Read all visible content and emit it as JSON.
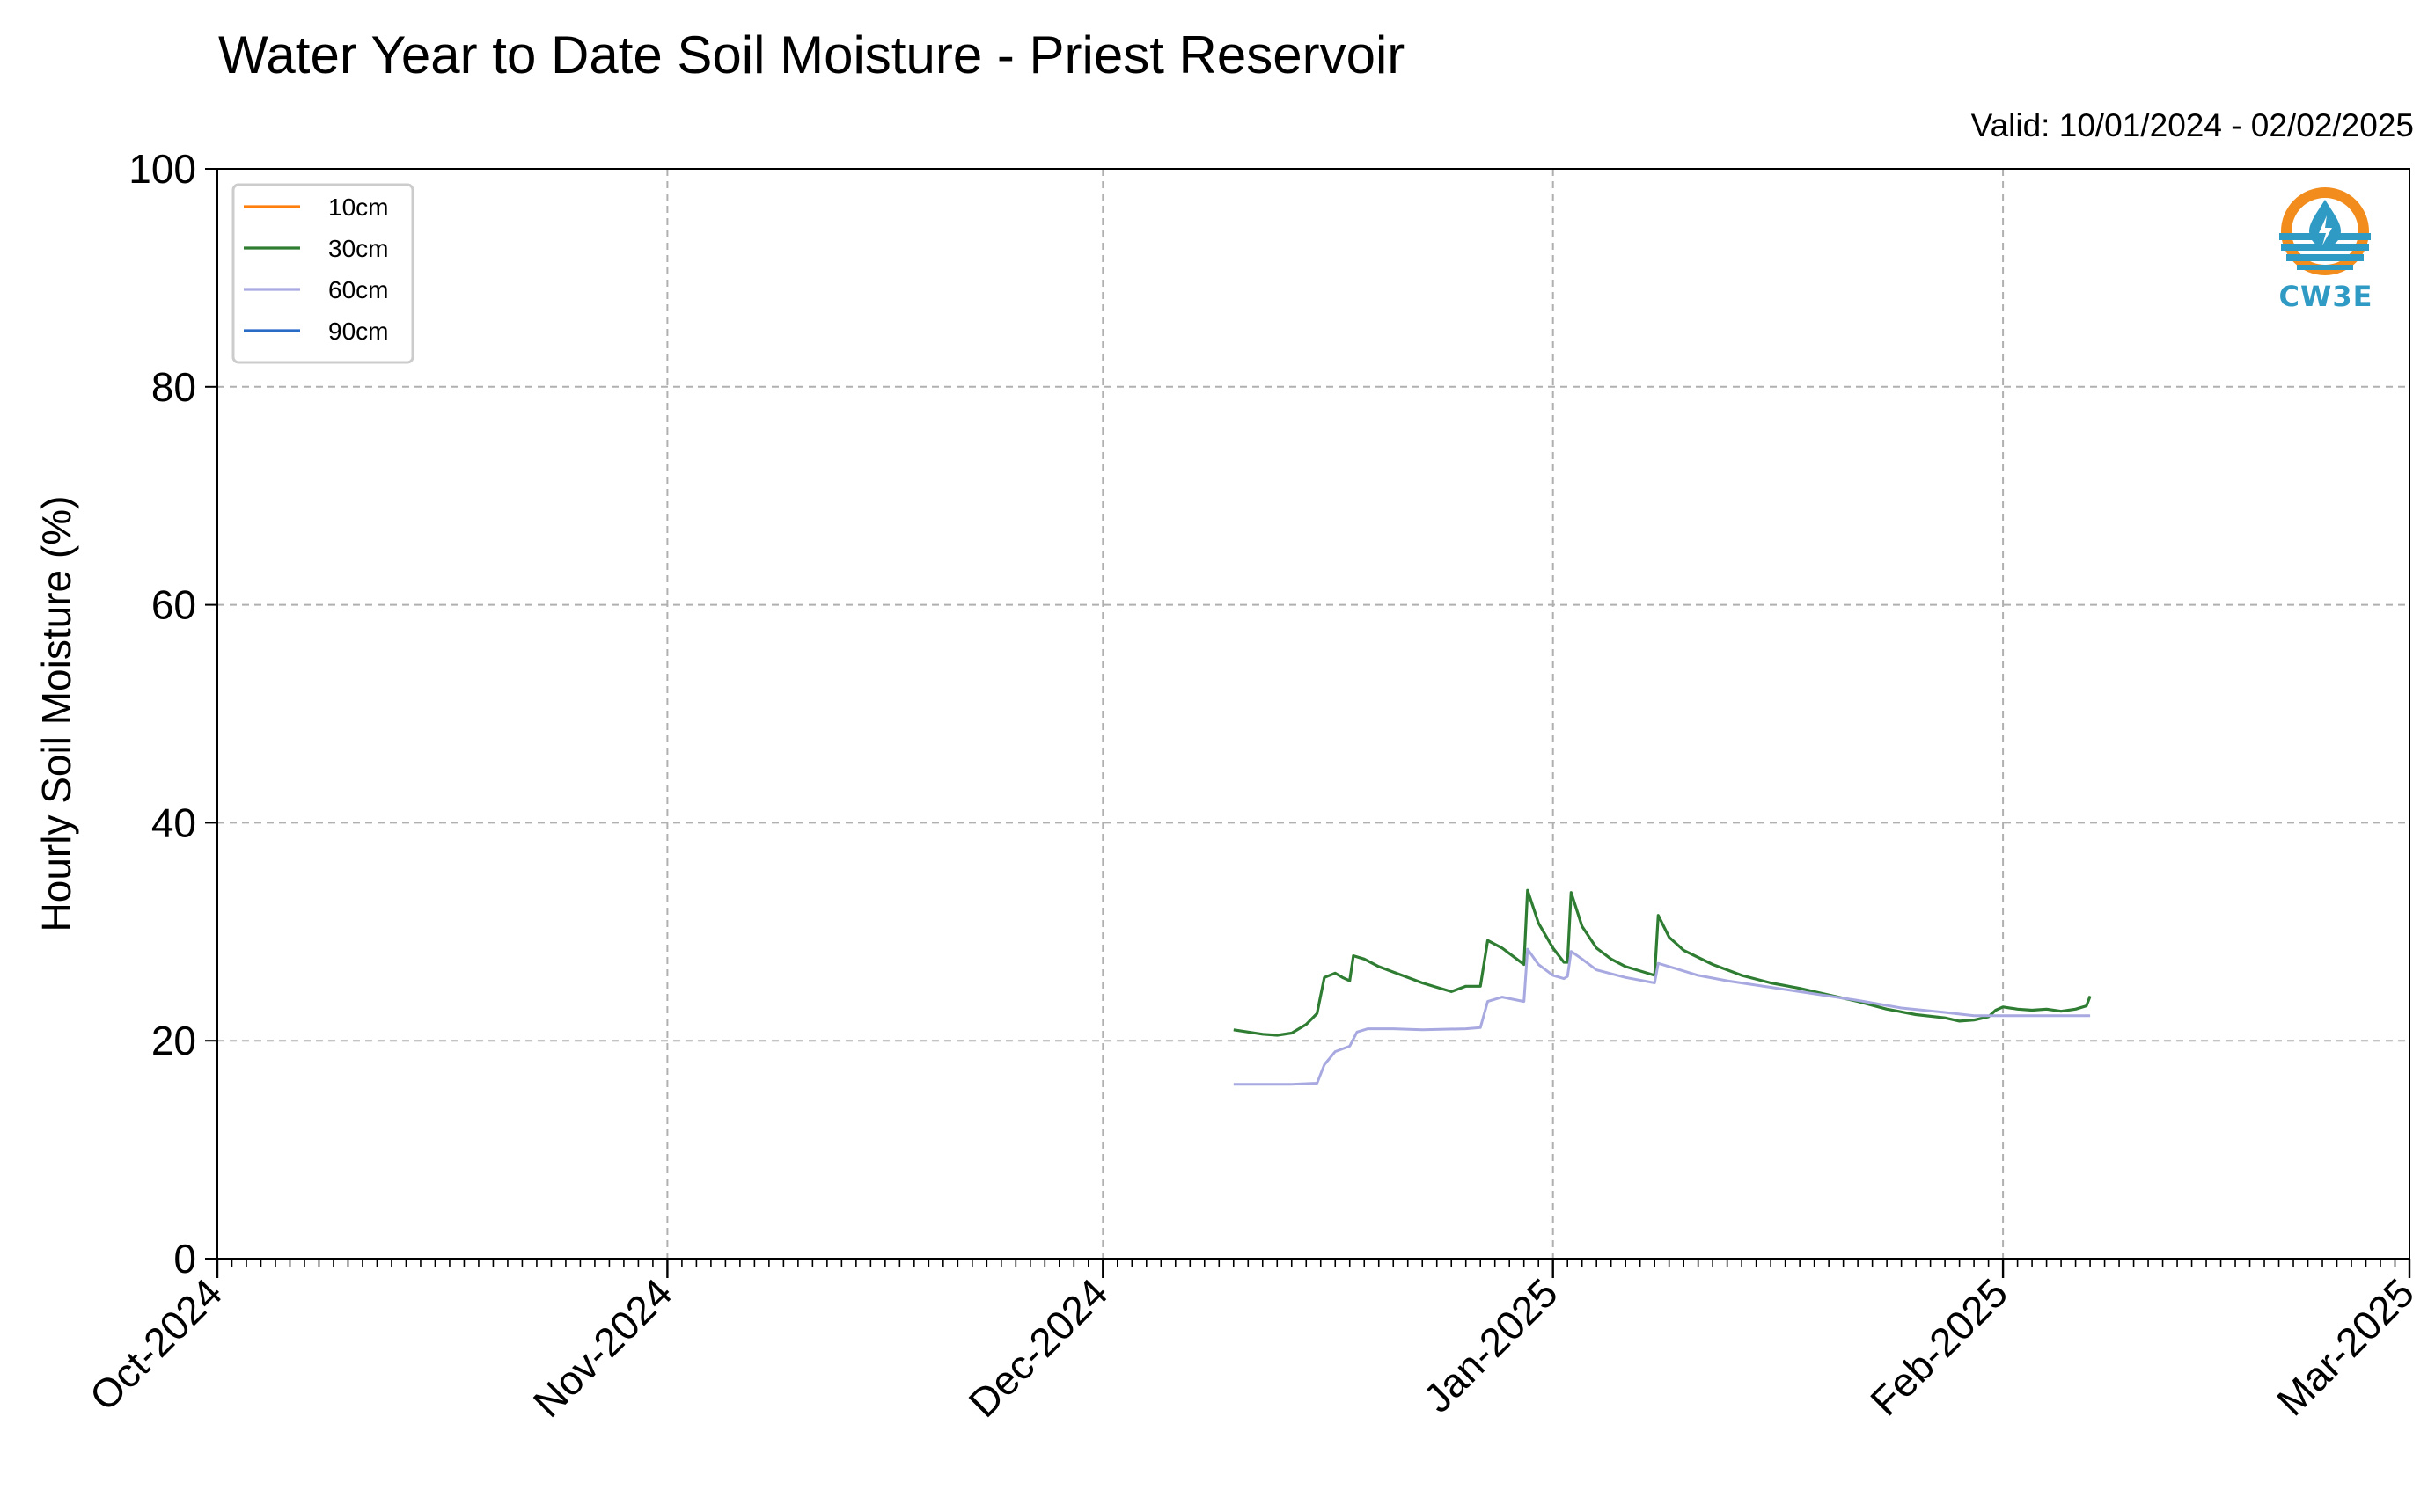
{
  "title": "Water Year to Date Soil Moisture - Priest Reservoir",
  "valid_label": "Valid: 10/01/2024 - 02/02/2025",
  "logo_text": "CW3E",
  "chart_data": {
    "type": "line",
    "title": "Water Year to Date Soil Moisture - Priest Reservoir",
    "subtitle": "Valid: 10/01/2024 - 02/02/2025",
    "xlabel": "",
    "ylabel": "Hourly Soil Moisture (%)",
    "xlim": [
      "2024-10-01",
      "2025-03-01"
    ],
    "ylim": [
      0,
      100
    ],
    "x_ticks": [
      "2024-10-01",
      "2024-11-01",
      "2024-12-01",
      "2025-01-01",
      "2025-02-01",
      "2025-03-01"
    ],
    "x_tick_labels": [
      "Oct-2024",
      "Nov-2024",
      "Dec-2024",
      "Jan-2025",
      "Feb-2025",
      "Mar-2025"
    ],
    "y_ticks": [
      0,
      20,
      40,
      60,
      80,
      100
    ],
    "y_tick_labels": [
      "0",
      "20",
      "40",
      "60",
      "80",
      "100"
    ],
    "grid": true,
    "legend_position": "top-left",
    "series": [
      {
        "name": "10cm",
        "color": "#ff7f0e",
        "points": []
      },
      {
        "name": "30cm",
        "color": "#2e7d32",
        "points": [
          [
            "2024-12-10T00:00",
            21.0
          ],
          [
            "2024-12-11T00:00",
            20.8
          ],
          [
            "2024-12-12T00:00",
            20.6
          ],
          [
            "2024-12-13T00:00",
            20.5
          ],
          [
            "2024-12-14T00:00",
            20.7
          ],
          [
            "2024-12-15T00:00",
            21.5
          ],
          [
            "2024-12-15T18:00",
            22.5
          ],
          [
            "2024-12-16T06:00",
            25.8
          ],
          [
            "2024-12-17T00:00",
            26.2
          ],
          [
            "2024-12-17T12:00",
            25.8
          ],
          [
            "2024-12-18T00:00",
            25.5
          ],
          [
            "2024-12-18T06:00",
            27.8
          ],
          [
            "2024-12-19T00:00",
            27.5
          ],
          [
            "2024-12-20T00:00",
            26.8
          ],
          [
            "2024-12-21T00:00",
            26.3
          ],
          [
            "2024-12-22T00:00",
            25.8
          ],
          [
            "2024-12-23T00:00",
            25.3
          ],
          [
            "2024-12-24T00:00",
            24.9
          ],
          [
            "2024-12-25T00:00",
            24.5
          ],
          [
            "2024-12-26T00:00",
            25.0
          ],
          [
            "2024-12-27T00:00",
            25.0
          ],
          [
            "2024-12-27T12:00",
            29.2
          ],
          [
            "2024-12-28T12:00",
            28.5
          ],
          [
            "2024-12-29T12:00",
            27.5
          ],
          [
            "2024-12-30T00:00",
            27.0
          ],
          [
            "2024-12-30T06:00",
            33.8
          ],
          [
            "2024-12-31T00:00",
            30.8
          ],
          [
            "2025-01-01T00:00",
            28.5
          ],
          [
            "2025-01-01T18:00",
            27.2
          ],
          [
            "2025-01-02T00:00",
            27.2
          ],
          [
            "2025-01-02T06:00",
            33.6
          ],
          [
            "2025-01-03T00:00",
            30.5
          ],
          [
            "2025-01-04T00:00",
            28.5
          ],
          [
            "2025-01-05T00:00",
            27.5
          ],
          [
            "2025-01-06T00:00",
            26.8
          ],
          [
            "2025-01-07T00:00",
            26.4
          ],
          [
            "2025-01-08T00:00",
            26.0
          ],
          [
            "2025-01-08T06:00",
            31.5
          ],
          [
            "2025-01-09T00:00",
            29.5
          ],
          [
            "2025-01-10T00:00",
            28.3
          ],
          [
            "2025-01-12T00:00",
            27.0
          ],
          [
            "2025-01-14T00:00",
            26.0
          ],
          [
            "2025-01-16T00:00",
            25.3
          ],
          [
            "2025-01-18T00:00",
            24.8
          ],
          [
            "2025-01-20T00:00",
            24.2
          ],
          [
            "2025-01-22T00:00",
            23.6
          ],
          [
            "2025-01-24T00:00",
            22.9
          ],
          [
            "2025-01-26T00:00",
            22.4
          ],
          [
            "2025-01-28T00:00",
            22.1
          ],
          [
            "2025-01-29T00:00",
            21.8
          ],
          [
            "2025-01-30T00:00",
            21.9
          ],
          [
            "2025-01-31T00:00",
            22.2
          ],
          [
            "2025-01-31T12:00",
            22.8
          ],
          [
            "2025-02-01T00:00",
            23.1
          ],
          [
            "2025-02-02T00:00",
            22.9
          ],
          [
            "2025-02-03T00:00",
            22.8
          ],
          [
            "2025-02-04T00:00",
            22.9
          ],
          [
            "2025-02-05T00:00",
            22.7
          ],
          [
            "2025-02-06T00:00",
            22.9
          ],
          [
            "2025-02-06T18:00",
            23.2
          ],
          [
            "2025-02-07T00:00",
            24.1
          ]
        ]
      },
      {
        "name": "60cm",
        "color": "#a7a9e0",
        "points": [
          [
            "2024-12-10T00:00",
            16.0
          ],
          [
            "2024-12-12T00:00",
            16.0
          ],
          [
            "2024-12-14T00:00",
            16.0
          ],
          [
            "2024-12-15T18:00",
            16.1
          ],
          [
            "2024-12-16T06:00",
            17.8
          ],
          [
            "2024-12-17T00:00",
            19.0
          ],
          [
            "2024-12-18T00:00",
            19.5
          ],
          [
            "2024-12-18T12:00",
            20.8
          ],
          [
            "2024-12-19T06:00",
            21.1
          ],
          [
            "2024-12-21T00:00",
            21.1
          ],
          [
            "2024-12-23T00:00",
            21.0
          ],
          [
            "2024-12-26T00:00",
            21.1
          ],
          [
            "2024-12-27T00:00",
            21.2
          ],
          [
            "2024-12-27T12:00",
            23.6
          ],
          [
            "2024-12-28T12:00",
            24.0
          ],
          [
            "2024-12-30T00:00",
            23.6
          ],
          [
            "2024-12-30T06:00",
            28.4
          ],
          [
            "2024-12-31T00:00",
            27.0
          ],
          [
            "2025-01-01T00:00",
            26.0
          ],
          [
            "2025-01-01T18:00",
            25.7
          ],
          [
            "2025-01-02T00:00",
            25.9
          ],
          [
            "2025-01-02T06:00",
            28.2
          ],
          [
            "2025-01-03T00:00",
            27.5
          ],
          [
            "2025-01-04T00:00",
            26.5
          ],
          [
            "2025-01-06T00:00",
            25.8
          ],
          [
            "2025-01-08T00:00",
            25.3
          ],
          [
            "2025-01-08T06:00",
            27.1
          ],
          [
            "2025-01-09T00:00",
            26.8
          ],
          [
            "2025-01-11T00:00",
            26.0
          ],
          [
            "2025-01-13T00:00",
            25.5
          ],
          [
            "2025-01-16T00:00",
            24.9
          ],
          [
            "2025-01-19T00:00",
            24.3
          ],
          [
            "2025-01-22T00:00",
            23.7
          ],
          [
            "2025-01-25T00:00",
            23.0
          ],
          [
            "2025-01-28T00:00",
            22.6
          ],
          [
            "2025-01-30T00:00",
            22.3
          ],
          [
            "2025-01-31T00:00",
            22.3
          ],
          [
            "2025-02-01T00:00",
            22.3
          ],
          [
            "2025-02-03T00:00",
            22.3
          ],
          [
            "2025-02-05T00:00",
            22.3
          ],
          [
            "2025-02-07T00:00",
            22.3
          ]
        ]
      },
      {
        "name": "90cm",
        "color": "#2a6bc8",
        "points": []
      }
    ]
  }
}
